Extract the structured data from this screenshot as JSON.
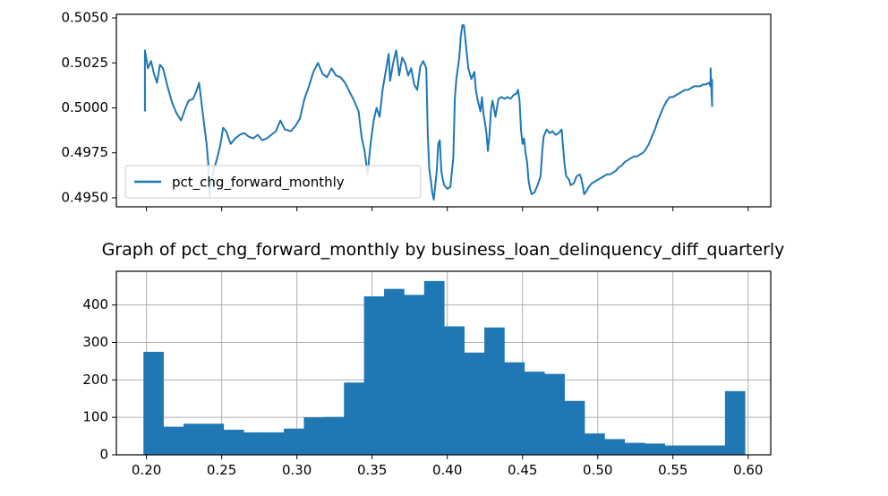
{
  "chart_data": [
    {
      "type": "line",
      "title": "",
      "xlabel": "",
      "ylabel": "",
      "ylim": [
        0.4945,
        0.5052
      ],
      "yticks": [
        "0.4950",
        "0.4975",
        "0.5000",
        "0.5025",
        "0.5050"
      ],
      "xticks_labeled": false,
      "legend": {
        "placement": "lower-left",
        "entries": [
          "pct_chg_forward_monthly"
        ]
      },
      "grid": false,
      "color": "#1f77b4",
      "series": [
        {
          "name": "pct_chg_forward_monthly",
          "points": [
            [
              0.199,
              0.4998
            ],
            [
              0.199,
              0.5032
            ],
            [
              0.201,
              0.5022
            ],
            [
              0.203,
              0.5026
            ],
            [
              0.205,
              0.5019
            ],
            [
              0.207,
              0.5014
            ],
            [
              0.209,
              0.5024
            ],
            [
              0.211,
              0.5022
            ],
            [
              0.214,
              0.5012
            ],
            [
              0.217,
              0.5003
            ],
            [
              0.22,
              0.4997
            ],
            [
              0.223,
              0.4993
            ],
            [
              0.226,
              0.5
            ],
            [
              0.228,
              0.5004
            ],
            [
              0.231,
              0.5005
            ],
            [
              0.233,
              0.5009
            ],
            [
              0.235,
              0.5014
            ],
            [
              0.236,
              0.5007
            ],
            [
              0.238,
              0.4993
            ],
            [
              0.24,
              0.498
            ],
            [
              0.241,
              0.497
            ],
            [
              0.242,
              0.4951
            ],
            [
              0.243,
              0.496
            ],
            [
              0.245,
              0.4966
            ],
            [
              0.247,
              0.4972
            ],
            [
              0.249,
              0.4979
            ],
            [
              0.251,
              0.4989
            ],
            [
              0.253,
              0.4987
            ],
            [
              0.256,
              0.498
            ],
            [
              0.259,
              0.4983
            ],
            [
              0.262,
              0.4985
            ],
            [
              0.265,
              0.4986
            ],
            [
              0.268,
              0.4984
            ],
            [
              0.271,
              0.4983
            ],
            [
              0.274,
              0.4985
            ],
            [
              0.277,
              0.4982
            ],
            [
              0.28,
              0.4983
            ],
            [
              0.283,
              0.4985
            ],
            [
              0.286,
              0.4987
            ],
            [
              0.289,
              0.4993
            ],
            [
              0.292,
              0.4988
            ],
            [
              0.296,
              0.4987
            ],
            [
              0.299,
              0.499
            ],
            [
              0.302,
              0.4994
            ],
            [
              0.305,
              0.5005
            ],
            [
              0.308,
              0.5012
            ],
            [
              0.311,
              0.502
            ],
            [
              0.314,
              0.5025
            ],
            [
              0.317,
              0.5019
            ],
            [
              0.32,
              0.5017
            ],
            [
              0.323,
              0.5022
            ],
            [
              0.326,
              0.5018
            ],
            [
              0.329,
              0.5017
            ],
            [
              0.332,
              0.5014
            ],
            [
              0.335,
              0.5009
            ],
            [
              0.338,
              0.5004
            ],
            [
              0.341,
              0.4998
            ],
            [
              0.343,
              0.4984
            ],
            [
              0.345,
              0.4976
            ],
            [
              0.347,
              0.4963
            ],
            [
              0.349,
              0.498
            ],
            [
              0.351,
              0.4993
            ],
            [
              0.353,
              0.5
            ],
            [
              0.355,
              0.4995
            ],
            [
              0.357,
              0.501
            ],
            [
              0.359,
              0.502
            ],
            [
              0.361,
              0.503
            ],
            [
              0.362,
              0.5015
            ],
            [
              0.364,
              0.5025
            ],
            [
              0.366,
              0.5032
            ],
            [
              0.368,
              0.5018
            ],
            [
              0.37,
              0.5028
            ],
            [
              0.372,
              0.5025
            ],
            [
              0.374,
              0.5018
            ],
            [
              0.376,
              0.5022
            ],
            [
              0.378,
              0.5013
            ],
            [
              0.38,
              0.501
            ],
            [
              0.382,
              0.5023
            ],
            [
              0.384,
              0.5026
            ],
            [
              0.386,
              0.5022
            ],
            [
              0.387,
              0.4985
            ],
            [
              0.388,
              0.4966
            ],
            [
              0.389,
              0.496
            ],
            [
              0.39,
              0.4953
            ],
            [
              0.391,
              0.4949
            ],
            [
              0.393,
              0.4965
            ],
            [
              0.394,
              0.498
            ],
            [
              0.395,
              0.4982
            ],
            [
              0.396,
              0.4965
            ],
            [
              0.397,
              0.496
            ],
            [
              0.398,
              0.4957
            ],
            [
              0.4,
              0.4955
            ],
            [
              0.402,
              0.4956
            ],
            [
              0.404,
              0.4972
            ],
            [
              0.405,
              0.5005
            ],
            [
              0.406,
              0.5016
            ],
            [
              0.408,
              0.5028
            ],
            [
              0.409,
              0.504
            ],
            [
              0.41,
              0.5046
            ],
            [
              0.411,
              0.5046
            ],
            [
              0.412,
              0.5038
            ],
            [
              0.413,
              0.503
            ],
            [
              0.414,
              0.5022
            ],
            [
              0.416,
              0.5016
            ],
            [
              0.418,
              0.502
            ],
            [
              0.419,
              0.501
            ],
            [
              0.42,
              0.5005
            ],
            [
              0.422,
              0.4998
            ],
            [
              0.423,
              0.5006
            ],
            [
              0.424,
              0.4997
            ],
            [
              0.425,
              0.4992
            ],
            [
              0.426,
              0.4986
            ],
            [
              0.427,
              0.4976
            ],
            [
              0.428,
              0.4985
            ],
            [
              0.429,
              0.4998
            ],
            [
              0.43,
              0.5004
            ],
            [
              0.431,
              0.5
            ],
            [
              0.432,
              0.4995
            ],
            [
              0.434,
              0.5005
            ],
            [
              0.436,
              0.5006
            ],
            [
              0.438,
              0.5005
            ],
            [
              0.44,
              0.5006
            ],
            [
              0.442,
              0.5005
            ],
            [
              0.444,
              0.5007
            ],
            [
              0.446,
              0.5008
            ],
            [
              0.447,
              0.501
            ],
            [
              0.448,
              0.5004
            ],
            [
              0.449,
              0.4988
            ],
            [
              0.45,
              0.498
            ],
            [
              0.451,
              0.4983
            ],
            [
              0.452,
              0.4975
            ],
            [
              0.453,
              0.497
            ],
            [
              0.454,
              0.496
            ],
            [
              0.455,
              0.4955
            ],
            [
              0.456,
              0.4952
            ],
            [
              0.458,
              0.4953
            ],
            [
              0.46,
              0.4957
            ],
            [
              0.462,
              0.4962
            ],
            [
              0.463,
              0.4975
            ],
            [
              0.464,
              0.4984
            ],
            [
              0.466,
              0.4988
            ],
            [
              0.468,
              0.4986
            ],
            [
              0.47,
              0.4987
            ],
            [
              0.472,
              0.4985
            ],
            [
              0.474,
              0.4986
            ],
            [
              0.476,
              0.4988
            ],
            [
              0.477,
              0.4978
            ],
            [
              0.478,
              0.4968
            ],
            [
              0.479,
              0.4962
            ],
            [
              0.481,
              0.496
            ],
            [
              0.482,
              0.4957
            ],
            [
              0.484,
              0.4958
            ],
            [
              0.486,
              0.4962
            ],
            [
              0.488,
              0.4963
            ],
            [
              0.489,
              0.4961
            ],
            [
              0.49,
              0.4957
            ],
            [
              0.491,
              0.4952
            ],
            [
              0.492,
              0.4953
            ],
            [
              0.494,
              0.4956
            ],
            [
              0.496,
              0.4958
            ],
            [
              0.498,
              0.4959
            ],
            [
              0.5,
              0.496
            ],
            [
              0.502,
              0.4961
            ],
            [
              0.504,
              0.4962
            ],
            [
              0.506,
              0.4963
            ],
            [
              0.508,
              0.4963
            ],
            [
              0.51,
              0.4964
            ],
            [
              0.512,
              0.4965
            ],
            [
              0.514,
              0.4967
            ],
            [
              0.516,
              0.4968
            ],
            [
              0.518,
              0.497
            ],
            [
              0.52,
              0.4971
            ],
            [
              0.522,
              0.4972
            ],
            [
              0.524,
              0.4973
            ],
            [
              0.526,
              0.4973
            ],
            [
              0.528,
              0.4974
            ],
            [
              0.53,
              0.4975
            ],
            [
              0.532,
              0.4977
            ],
            [
              0.534,
              0.498
            ],
            [
              0.536,
              0.4984
            ],
            [
              0.538,
              0.4988
            ],
            [
              0.54,
              0.4993
            ],
            [
              0.542,
              0.4997
            ],
            [
              0.544,
              0.5001
            ],
            [
              0.546,
              0.5004
            ],
            [
              0.548,
              0.5006
            ],
            [
              0.55,
              0.5006
            ],
            [
              0.552,
              0.5007
            ],
            [
              0.554,
              0.5008
            ],
            [
              0.556,
              0.5009
            ],
            [
              0.558,
              0.501
            ],
            [
              0.56,
              0.501
            ],
            [
              0.562,
              0.5011
            ],
            [
              0.564,
              0.5012
            ],
            [
              0.566,
              0.5012
            ],
            [
              0.568,
              0.5012
            ],
            [
              0.57,
              0.5013
            ],
            [
              0.572,
              0.5013
            ],
            [
              0.574,
              0.5014
            ],
            [
              0.575,
              0.5012
            ],
            [
              0.575,
              0.5022
            ],
            [
              0.576,
              0.5001
            ],
            [
              0.576,
              0.5016
            ]
          ]
        }
      ]
    },
    {
      "type": "bar",
      "title": "Graph of pct_chg_forward_monthly by business_loan_delinquency_diff_quarterly",
      "xlabel": "",
      "ylabel": "",
      "xlim": [
        0.18,
        0.615
      ],
      "ylim": [
        0,
        490
      ],
      "xticks": [
        "0.20",
        "0.25",
        "0.30",
        "0.35",
        "0.40",
        "0.45",
        "0.50",
        "0.55",
        "0.60"
      ],
      "yticks": [
        "0",
        "100",
        "200",
        "300",
        "400"
      ],
      "grid": true,
      "color": "#1f77b4",
      "bins": {
        "start": 0.198,
        "width": 0.01333,
        "counts": [
          275,
          75,
          83,
          83,
          67,
          60,
          60,
          70,
          100,
          101,
          193,
          423,
          443,
          427,
          464,
          343,
          273,
          340,
          247,
          222,
          216,
          144,
          57,
          42,
          32,
          30,
          25,
          25,
          25,
          170
        ]
      }
    }
  ]
}
